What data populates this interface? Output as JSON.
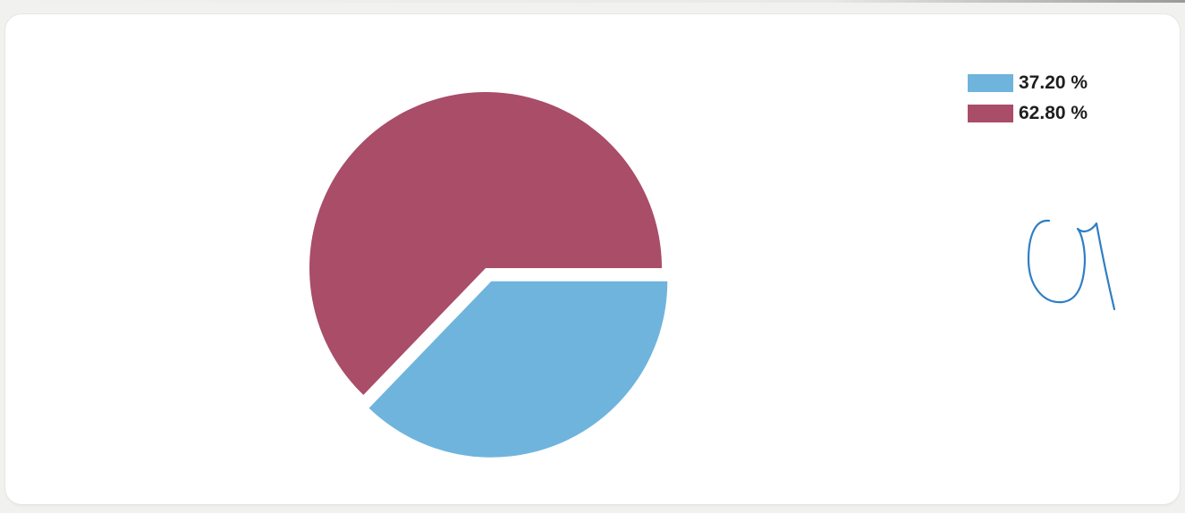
{
  "chart_data": {
    "type": "pie",
    "slices": [
      {
        "label": "37.20 %",
        "value": 37.2,
        "color": "#6fb4dd",
        "exploded": true
      },
      {
        "label": "62.80 %",
        "value": 62.8,
        "color": "#a94d69",
        "exploded": false
      }
    ],
    "legend_position": "top-right"
  },
  "annotation": {
    "handwritten_mark": "a",
    "ink_color": "#2f7fc4"
  }
}
